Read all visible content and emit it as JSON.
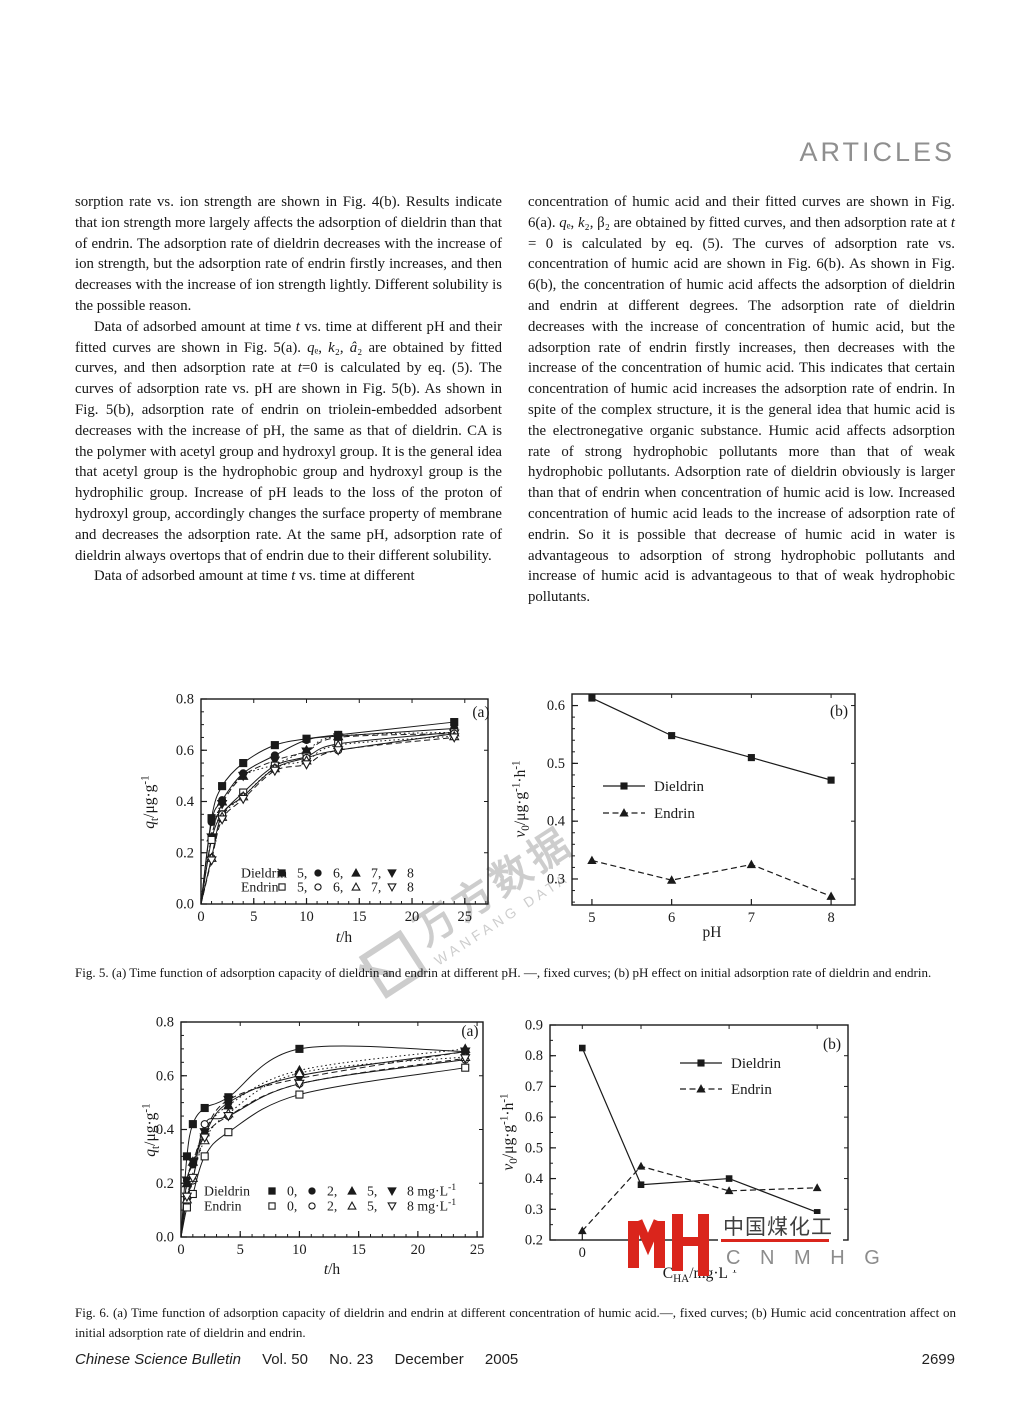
{
  "header": {
    "title": "ARTICLES"
  },
  "columns": {
    "left": [
      {
        "text": "sorption rate vs. ion strength are shown in Fig. 4(b). Results indicate that ion strength more largely affects the adsorption of dieldrin than that of endrin. The adsorption rate of dieldrin decreases with the increase of ion strength, but the adsorption rate of endrin firstly increases, and then decreases with the increase of ion strength lightly. Different solubility is the possible reason."
      },
      {
        "text": "Data of adsorbed amount at time *t* vs. time at different pH and their fitted curves are shown in Fig. 5(a). *q*ₑ, *k*₂, *â*₂ are obtained by fitted curves, and then adsorption rate at *t*=0 is calculated by eq. (5). The curves of adsorption rate vs. pH are shown in Fig. 5(b). As shown in Fig. 5(b), adsorption rate of endrin on triolein-embedded adsorbent decreases with the increase of pH, the same as that of dieldrin. CA is the polymer with acetyl group and hydroxyl group. It is the general idea that acetyl group is the hydrophobic group and hydroxyl group is the hydrophilic group. Increase of pH leads to the loss of the proton of hydroxyl group, accordingly changes the surface property of membrane and decreases the adsorption rate. At the same pH, adsorption rate of dieldrin always overtops that of endrin due to their different solubility."
      },
      {
        "text": "Data of adsorbed amount at time *t* vs. time at different"
      }
    ],
    "right": [
      {
        "text": "concentration of humic acid and their fitted curves are shown in Fig. 6(a). *q*ₑ, *k*₂, β₂ are obtained by fitted curves, and then adsorption rate at *t* = 0 is calculated by eq. (5). The curves of adsorption rate vs. concentration of humic acid are shown in Fig. 6(b). As shown in Fig. 6(b), the concentration of humic acid affects the adsorption of dieldrin and endrin at different degrees. The adsorption rate of dieldrin decreases with the increase of concentration of humic acid, but the adsorption rate of endrin firstly increases, then decreases with the increase of the concentration of humic acid. This indicates that certain concentration of humic acid increases the adsorption rate of endrin. In spite of the complex structure, it is the general idea that humic acid is the electronegative organic substance. Humic acid affects adsorption rate of strong hydrophobic pollutants more than that of weak hydrophobic pollutants. Adsorption rate of dieldrin obviously is larger than that of endrin when concentration of humic acid is low. Increased concentration of humic acid leads to the increase of adsorption rate of endrin. So it is possible that decrease of humic acid in water is advantageous to adsorption of strong hydrophobic pollutants and increase of humic acid is advantageous to that of weak hydrophobic pollutants."
      }
    ]
  },
  "captions": {
    "fig5": "Fig. 5.  (a) Time function of adsorption capacity of dieldrin and endrin at different pH. —, fixed curves; (b) pH effect on initial adsorption rate of dieldrin and endrin.",
    "fig6": "Fig. 6. (a) Time function of adsorption capacity of dieldrin and endrin at different concentration of humic acid.—, fixed curves; (b) Humic acid concentration affect on initial adsorption rate of dieldrin and endrin."
  },
  "footer": {
    "journal": "Chinese Science Bulletin",
    "volume": "Vol. 50",
    "issue": "No. 23",
    "month": "December",
    "year": "2005",
    "page": "2699"
  },
  "watermarks": {
    "wanfang": {
      "cn": "万方数据",
      "en": "WANFANG DATA",
      "gray": "#bfbfbf"
    },
    "cnmhg": {
      "cn": "中国煤化工",
      "en": "C N M H G",
      "red": "#da251c",
      "dark": "#3f3f3f",
      "mid": "#8c8c8c"
    }
  },
  "chart_data": [
    {
      "id": "fig5a",
      "type": "scatter",
      "panel": "(a)",
      "xlabel": "*t*/h",
      "ylabel": "*q*_{t}/μg·g^{-1}",
      "xlim": [
        0,
        27.2
      ],
      "ylim": [
        0,
        0.8
      ],
      "ydec": 1,
      "xticks": [
        0,
        5,
        10,
        15,
        20,
        25
      ],
      "yticks": [
        0,
        0.2,
        0.4,
        0.6,
        0.8
      ],
      "x": [
        1,
        2,
        4,
        7,
        10,
        13,
        24
      ],
      "series": [
        {
          "name": "Dieldrin pH 5",
          "marker": "square",
          "filled": true,
          "dash": "solid",
          "values": [
            0.335,
            0.46,
            0.55,
            0.62,
            0.645,
            0.66,
            0.71
          ]
        },
        {
          "name": "Dieldrin pH 6",
          "marker": "circle",
          "filled": true,
          "dash": "solid",
          "values": [
            0.32,
            0.405,
            0.51,
            0.58,
            0.64,
            0.655,
            0.685
          ]
        },
        {
          "name": "Dieldrin pH 7",
          "marker": "triangle-up",
          "filled": true,
          "dash": "dotted",
          "values": [
            0.26,
            0.4,
            0.5,
            0.545,
            0.6,
            0.655,
            0.67
          ]
        },
        {
          "name": "Dieldrin pH 8",
          "marker": "triangle-down",
          "filled": true,
          "dash": "dashed",
          "values": [
            0.26,
            0.39,
            0.5,
            0.56,
            0.595,
            0.65,
            0.665
          ]
        },
        {
          "name": "Endrin pH 5",
          "marker": "square",
          "filled": false,
          "dash": "solid",
          "values": [
            0.25,
            0.35,
            0.435,
            0.54,
            0.575,
            0.625,
            0.67
          ]
        },
        {
          "name": "Endrin pH 6",
          "marker": "circle",
          "filled": false,
          "dash": "solid",
          "values": [
            0.18,
            0.35,
            0.42,
            0.53,
            0.57,
            0.6,
            0.665
          ]
        },
        {
          "name": "Endrin pH 7",
          "marker": "triangle-up",
          "filled": false,
          "dash": "dotted",
          "values": [
            0.18,
            0.34,
            0.42,
            0.53,
            0.56,
            0.62,
            0.655
          ]
        },
        {
          "name": "Endrin pH 8",
          "marker": "triangle-down",
          "filled": false,
          "dash": "dashed",
          "values": [
            0.17,
            0.33,
            0.41,
            0.52,
            0.545,
            0.6,
            0.65
          ]
        }
      ],
      "legend": {
        "rows": [
          {
            "label": "Dieldrin",
            "entries": [
              {
                "marker": "square",
                "filled": true,
                "text": "5,"
              },
              {
                "marker": "circle",
                "filled": true,
                "text": "6,"
              },
              {
                "marker": "triangle-up",
                "filled": true,
                "text": "7,"
              },
              {
                "marker": "triangle-down",
                "filled": true,
                "text": "8"
              }
            ]
          },
          {
            "label": "Endrin",
            "entries": [
              {
                "marker": "square",
                "filled": false,
                "text": "5,"
              },
              {
                "marker": "circle",
                "filled": false,
                "text": "6,"
              },
              {
                "marker": "triangle-up",
                "filled": false,
                "text": "7,"
              },
              {
                "marker": "triangle-down",
                "filled": false,
                "text": "8"
              }
            ]
          }
        ]
      }
    },
    {
      "id": "fig5b",
      "type": "line",
      "panel": "(b)",
      "xlabel": "pH",
      "ylabel": "*v*_{0}/μg·g^{-1}·h^{-1}",
      "xlim": [
        4.75,
        8.3
      ],
      "ylim": [
        0.255,
        0.62
      ],
      "ydec": 1,
      "xticks": [
        5,
        6,
        7,
        8
      ],
      "yticks": [
        0.3,
        0.4,
        0.5,
        0.6
      ],
      "x": [
        5,
        6,
        7,
        8
      ],
      "series": [
        {
          "name": "Dieldrin",
          "marker": "square",
          "filled": true,
          "dash": "solid",
          "values": [
            0.613,
            0.548,
            0.51,
            0.471
          ]
        },
        {
          "name": "Endrin",
          "marker": "triangle-up",
          "filled": true,
          "dash": "dashed",
          "values": [
            0.332,
            0.298,
            0.325,
            0.27
          ]
        }
      ],
      "legend": {
        "rows": [
          {
            "label": "Dieldrin",
            "marker": "square",
            "filled": true,
            "dash": "solid"
          },
          {
            "label": "Endrin",
            "marker": "triangle-up",
            "filled": true,
            "dash": "dashed"
          }
        ]
      }
    },
    {
      "id": "fig6a",
      "type": "scatter",
      "panel": "(a)",
      "xlabel": "*t*/h",
      "ylabel": "*q*_{t}/μg·g^{-1}",
      "xlim": [
        0,
        25.5
      ],
      "ylim": [
        0,
        0.8
      ],
      "ydec": 1,
      "xticks": [
        0,
        5,
        10,
        15,
        20,
        25
      ],
      "yticks": [
        0,
        0.2,
        0.4,
        0.6,
        0.8
      ],
      "x": [
        0.5,
        1,
        2,
        4,
        10,
        24
      ],
      "series": [
        {
          "name": "Dieldrin 0 mg/L",
          "marker": "square",
          "filled": true,
          "dash": "solid",
          "values": [
            0.3,
            0.42,
            0.48,
            0.52,
            0.7,
            0.69
          ]
        },
        {
          "name": "Dieldrin 2 mg/L",
          "marker": "circle",
          "filled": true,
          "dash": "solid",
          "values": [
            0.21,
            0.27,
            0.38,
            0.5,
            0.6,
            0.69
          ]
        },
        {
          "name": "Dieldrin 5 mg/L",
          "marker": "triangle-up",
          "filled": true,
          "dash": "dotted",
          "values": [
            0.2,
            0.28,
            0.39,
            0.49,
            0.62,
            0.7
          ]
        },
        {
          "name": "Dieldrin 8 mg/L",
          "marker": "triangle-down",
          "filled": true,
          "dash": "dashed",
          "values": [
            0.21,
            0.28,
            0.39,
            0.51,
            0.59,
            0.69
          ]
        },
        {
          "name": "Endrin 0 mg/L",
          "marker": "square",
          "filled": false,
          "dash": "solid",
          "values": [
            0.11,
            0.16,
            0.3,
            0.39,
            0.53,
            0.63
          ]
        },
        {
          "name": "Endrin 2 mg/L",
          "marker": "circle",
          "filled": false,
          "dash": "solid",
          "values": [
            0.15,
            0.21,
            0.42,
            0.45,
            0.57,
            0.66
          ]
        },
        {
          "name": "Endrin 5 mg/L",
          "marker": "triangle-up",
          "filled": false,
          "dash": "dotted",
          "values": [
            0.14,
            0.22,
            0.36,
            0.46,
            0.61,
            0.67
          ]
        },
        {
          "name": "Endrin 8 mg/L",
          "marker": "triangle-down",
          "filled": false,
          "dash": "dashed",
          "values": [
            0.15,
            0.22,
            0.37,
            0.45,
            0.57,
            0.665
          ]
        }
      ],
      "legend": {
        "rows": [
          {
            "label": "Dieldrin",
            "entries": [
              {
                "marker": "square",
                "filled": true,
                "text": "0,"
              },
              {
                "marker": "circle",
                "filled": true,
                "text": "2,"
              },
              {
                "marker": "triangle-up",
                "filled": true,
                "text": "5,"
              },
              {
                "marker": "triangle-down",
                "filled": true,
                "text": "8 mg·L^{-1}"
              }
            ]
          },
          {
            "label": "Endrin",
            "entries": [
              {
                "marker": "square",
                "filled": false,
                "text": "0,"
              },
              {
                "marker": "circle",
                "filled": false,
                "text": "2,"
              },
              {
                "marker": "triangle-up",
                "filled": false,
                "text": "5,"
              },
              {
                "marker": "triangle-down",
                "filled": false,
                "text": "8 mg·L^{-1}"
              }
            ]
          }
        ]
      }
    },
    {
      "id": "fig6b",
      "type": "line",
      "panel": "(b)",
      "xlabel": "C_{HA}/mg·L^{-1}",
      "ylabel": "*v*_{0}/μg·g^{-1}·h^{-1}",
      "xlim": [
        -1.1,
        9.05
      ],
      "ylim": [
        0.2,
        0.9
      ],
      "ydec": 1,
      "xticks": [
        0,
        2,
        5,
        8
      ],
      "xtick_labels": [
        "0",
        "",
        "",
        ""
      ],
      "yticks": [
        0.2,
        0.3,
        0.4,
        0.5,
        0.6,
        0.7,
        0.8,
        0.9
      ],
      "x": [
        0,
        2,
        5,
        8
      ],
      "series": [
        {
          "name": "Dieldrin",
          "marker": "square",
          "filled": true,
          "dash": "solid",
          "values": [
            0.825,
            0.38,
            0.4,
            0.29
          ]
        },
        {
          "name": "Endrin",
          "marker": "triangle-up",
          "filled": true,
          "dash": "dashed",
          "values": [
            0.23,
            0.44,
            0.36,
            0.37
          ]
        }
      ],
      "legend": {
        "rows": [
          {
            "label": "Dieldrin",
            "marker": "square",
            "filled": true,
            "dash": "solid"
          },
          {
            "label": "Endrin",
            "marker": "triangle-up",
            "filled": true,
            "dash": "dashed"
          }
        ]
      }
    }
  ]
}
